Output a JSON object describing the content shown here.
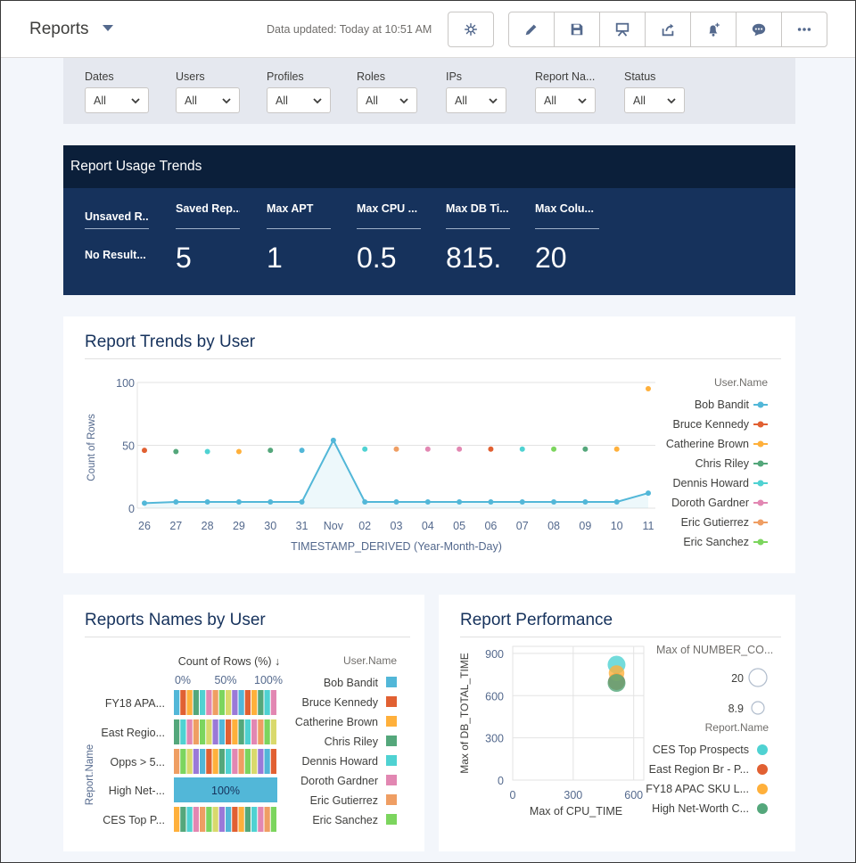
{
  "header": {
    "title": "Reports",
    "data_updated": "Data updated: Today at 10:51 AM",
    "icons": [
      "asterisk-icon",
      "pencil-icon",
      "save-icon",
      "presentation-icon",
      "share-icon",
      "notification-add-icon",
      "comment-icon",
      "more-icon"
    ]
  },
  "filters": [
    {
      "label": "Dates",
      "value": "All"
    },
    {
      "label": "Users",
      "value": "All"
    },
    {
      "label": "Profiles",
      "value": "All"
    },
    {
      "label": "Roles",
      "value": "All"
    },
    {
      "label": "IPs",
      "value": "All"
    },
    {
      "label": "Report Na...",
      "value": "All"
    },
    {
      "label": "Status",
      "value": "All"
    }
  ],
  "usage": {
    "title": "Report Usage Trends",
    "metrics": [
      {
        "label": "Unsaved R...",
        "value": "No Result..."
      },
      {
        "label": "Saved Rep...",
        "value": "5"
      },
      {
        "label": "Max APT",
        "value": "1"
      },
      {
        "label": "Max CPU ...",
        "value": "0.5"
      },
      {
        "label": "Max DB Ti...",
        "value": "815."
      },
      {
        "label": "Max Colu...",
        "value": "20"
      }
    ]
  },
  "colors": {
    "Bob Bandit": "#52b7d8",
    "Bruce Kennedy": "#e16032",
    "Catherine Brown": "#ffb03b",
    "Chris Riley": "#54a77b",
    "Dennis Howard": "#4fd2d2",
    "Doroth Gardner": "#e287b2",
    "Eric Gutierrez": "#ef9e63",
    "Eric Sanchez": "#7cd55e",
    "Extra1": "#d9d96c",
    "Extra2": "#9a79d8"
  },
  "chart_data": [
    {
      "type": "line",
      "title": "Report Trends by User",
      "xlabel": "TIMESTAMP_DERIVED (Year-Month-Day)",
      "ylabel": "Count of Rows",
      "categories": [
        "26",
        "27",
        "28",
        "29",
        "30",
        "31",
        "Nov",
        "02",
        "03",
        "04",
        "05",
        "06",
        "07",
        "08",
        "09",
        "10",
        "11"
      ],
      "yticks": [
        0,
        50,
        100
      ],
      "ylim": [
        0,
        100
      ],
      "legend_title": "User.Name",
      "legend_position": "right",
      "series": [
        {
          "name": "Bob Bandit",
          "values": [
            4,
            5,
            5,
            5,
            5,
            5,
            54,
            5,
            5,
            5,
            5,
            5,
            5,
            5,
            5,
            5,
            12
          ]
        },
        {
          "name": "Bruce Kennedy",
          "values": [
            46,
            null,
            null,
            null,
            null,
            null,
            null,
            null,
            null,
            null,
            null,
            47,
            null,
            null,
            null,
            null,
            null
          ]
        },
        {
          "name": "Catherine Brown",
          "values": [
            null,
            null,
            null,
            45,
            null,
            null,
            null,
            null,
            null,
            null,
            null,
            null,
            null,
            null,
            null,
            47,
            95
          ]
        },
        {
          "name": "Chris Riley",
          "values": [
            null,
            45,
            null,
            null,
            46,
            null,
            null,
            null,
            null,
            null,
            null,
            null,
            null,
            null,
            47,
            null,
            null
          ]
        },
        {
          "name": "Dennis Howard",
          "values": [
            null,
            null,
            45,
            null,
            null,
            null,
            null,
            47,
            null,
            null,
            null,
            null,
            47,
            null,
            null,
            null,
            null
          ]
        },
        {
          "name": "Doroth Gardner",
          "values": [
            null,
            null,
            null,
            null,
            null,
            null,
            null,
            null,
            null,
            47,
            47,
            null,
            null,
            null,
            null,
            null,
            null
          ]
        },
        {
          "name": "Eric Gutierrez",
          "values": [
            null,
            null,
            null,
            null,
            null,
            null,
            null,
            null,
            47,
            null,
            null,
            null,
            null,
            null,
            null,
            null,
            null
          ]
        },
        {
          "name": "Eric Sanchez",
          "values": [
            null,
            null,
            null,
            null,
            null,
            null,
            null,
            null,
            null,
            null,
            null,
            null,
            null,
            47,
            null,
            null,
            null
          ]
        }
      ],
      "extra_points": [
        {
          "x": "31",
          "y": 46,
          "series": "Bob Bandit"
        }
      ]
    },
    {
      "type": "bar",
      "title": "Reports Names by User",
      "xlabel": "Count of Rows (%) ↓",
      "ylabel": "Report.Name",
      "xticks": [
        "0%",
        "50%",
        "100%"
      ],
      "categories": [
        "FY18 APA...",
        "East Regio...",
        "Opps > 5...",
        "High Net-...",
        "CES Top P..."
      ],
      "stacked_percent": true,
      "single_value_label": {
        "category": "High Net-...",
        "label": "100%",
        "series": "Bob Bandit"
      },
      "legend_title": "User.Name",
      "legend": [
        "Bob Bandit",
        "Bruce Kennedy",
        "Catherine Brown",
        "Chris Riley",
        "Dennis Howard",
        "Doroth Gardner",
        "Eric Gutierrez",
        "Eric Sanchez"
      ]
    },
    {
      "type": "scatter",
      "title": "Report Performance",
      "xlabel": "Max of CPU_TIME",
      "ylabel": "Max of DB_TOTAL_TIME",
      "xlim": [
        0,
        650
      ],
      "ylim": [
        0,
        950
      ],
      "xticks": [
        0,
        300,
        600
      ],
      "yticks": [
        0,
        300,
        600,
        900
      ],
      "size_legend_title": "Max of NUMBER_CO...",
      "size_legend": [
        "20",
        "8.9"
      ],
      "legend_title": "Report.Name",
      "series": [
        {
          "name": "CES Top Prospects",
          "points": [
            {
              "x": 515,
              "y": 820,
              "size": 20
            }
          ]
        },
        {
          "name": "East Region Br - P...",
          "points": [
            {
              "x": 515,
              "y": 700,
              "size": 18
            }
          ]
        },
        {
          "name": "FY18 APAC SKU L...",
          "points": [
            {
              "x": 515,
              "y": 760,
              "size": 15
            }
          ]
        },
        {
          "name": "High Net-Worth C...",
          "points": [
            {
              "x": 515,
              "y": 690,
              "size": 20
            }
          ]
        }
      ]
    }
  ]
}
